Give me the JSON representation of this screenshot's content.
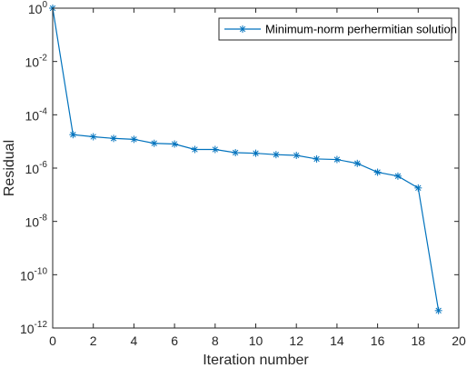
{
  "colors": {
    "series": "#0072BD",
    "axis": "#262626",
    "background": "#ffffff"
  },
  "chart_data": {
    "type": "line",
    "title": "",
    "xlabel": "Iteration number",
    "ylabel": "Residual",
    "xlim": [
      0,
      20
    ],
    "ylim": [
      1e-12,
      1
    ],
    "yscale": "log",
    "grid": false,
    "legend_position": "top-right",
    "marker": "asterisk",
    "x_ticks": [
      0,
      2,
      4,
      6,
      8,
      10,
      12,
      14,
      16,
      18,
      20
    ],
    "x_tick_labels": [
      "0",
      "2",
      "4",
      "6",
      "8",
      "10",
      "12",
      "14",
      "16",
      "18",
      "20"
    ],
    "y_tick_exponents": [
      0,
      -2,
      -4,
      -6,
      -8,
      -10,
      -12
    ],
    "y_tick_base": "10",
    "series": [
      {
        "name": "Minimum-norm perhermitian solution",
        "x": [
          0,
          1,
          2,
          3,
          4,
          5,
          6,
          7,
          8,
          9,
          10,
          11,
          12,
          13,
          14,
          15,
          16,
          17,
          18,
          19
        ],
        "y": [
          1.0,
          1.8e-05,
          1.5e-05,
          1.3e-05,
          1.2e-05,
          8.5e-06,
          8e-06,
          5e-06,
          5e-06,
          3.8e-06,
          3.6e-06,
          3.2e-06,
          3e-06,
          2.2e-06,
          2.1e-06,
          1.5e-06,
          7e-07,
          5e-07,
          1.8e-07,
          4.5e-12
        ]
      }
    ]
  }
}
